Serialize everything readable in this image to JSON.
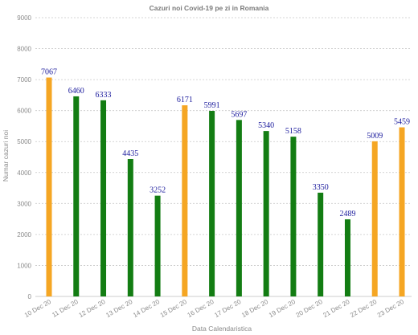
{
  "chart_data": {
    "type": "bar",
    "title": "Cazuri noi Covid-19 pe zi in Romania",
    "xlabel": "Data Calendaristica",
    "ylabel": "Numar cazuri noi",
    "ylim": [
      0,
      9000
    ],
    "yticks": [
      0,
      1000,
      2000,
      3000,
      4000,
      5000,
      6000,
      7000,
      8000,
      9000
    ],
    "grid": true,
    "categories": [
      "10 Dec 20",
      "11 Dec 20",
      "12 Dec 20",
      "13 Dec 20",
      "14 Dec 20",
      "15 Dec 20",
      "16 Dec 20",
      "17 Dec 20",
      "18 Dec 20",
      "19 Dec 20",
      "20 Dec 20",
      "21 Dec 20",
      "22 Dec 20",
      "23 Dec 20"
    ],
    "values": [
      7067,
      6460,
      6333,
      4435,
      3252,
      6171,
      5991,
      5697,
      5340,
      5158,
      3350,
      2489,
      5009,
      5459
    ],
    "bar_colors": [
      "#f5a623",
      "#137d13",
      "#137d13",
      "#137d13",
      "#137d13",
      "#f5a623",
      "#137d13",
      "#137d13",
      "#137d13",
      "#137d13",
      "#137d13",
      "#137d13",
      "#f5a623",
      "#f5a623"
    ]
  }
}
